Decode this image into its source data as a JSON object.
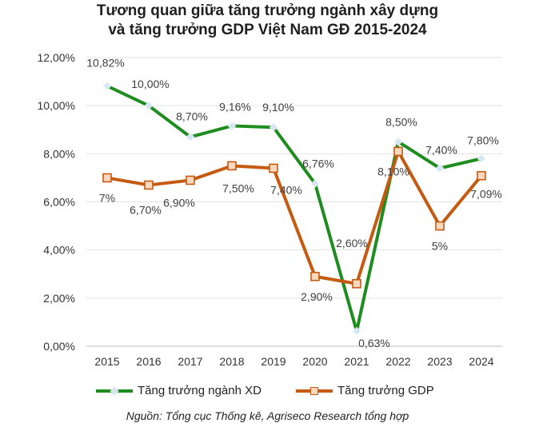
{
  "title_line1": "Tương quan giữa tăng trưởng ngành xây dựng",
  "title_line2": "và tăng trưởng GDP Việt Nam GĐ 2015-2024",
  "source": "Nguồn: Tổng cục Thống kê, Agriseco Research tổng hợp",
  "chart_data": {
    "type": "line",
    "title": "Tương quan giữa tăng trưởng ngành xây dựng và tăng trưởng GDP Việt Nam GĐ 2015-2024",
    "xlabel": "",
    "ylabel": "",
    "ylim": [
      0,
      12
    ],
    "y_ticks": [
      "0,00%",
      "2,00%",
      "4,00%",
      "6,00%",
      "8,00%",
      "10,00%",
      "12,00%"
    ],
    "grid": true,
    "legend_position": "bottom",
    "categories": [
      "2015",
      "2016",
      "2017",
      "2018",
      "2019",
      "2020",
      "2021",
      "2022",
      "2023",
      "2024"
    ],
    "series": [
      {
        "name": "Tăng trưởng ngành XD",
        "color": "#1e8c1e",
        "marker_color": "#d6e6f2",
        "marker": "diamond",
        "values": [
          10.82,
          10.0,
          8.7,
          9.16,
          9.1,
          6.76,
          0.63,
          8.5,
          7.4,
          7.8
        ],
        "labels": [
          "10,82%",
          "10,00%",
          "8,70%",
          "9,16%",
          "9,10%",
          "6,76%",
          "0,63%",
          "8,50%",
          "7,40%",
          "7,80%"
        ]
      },
      {
        "name": "Tăng trưởng GDP",
        "color": "#c55a11",
        "marker_color": "#fbd8be",
        "marker": "square",
        "values": [
          7.0,
          6.7,
          6.9,
          7.5,
          7.4,
          2.9,
          2.6,
          8.1,
          5.0,
          7.09
        ],
        "labels": [
          "7%",
          "6,70%",
          "6,90%",
          "7,50%",
          "7,40%",
          "2,90%",
          "2,60%",
          "8,10%",
          "5%",
          "7,09%"
        ]
      }
    ]
  }
}
